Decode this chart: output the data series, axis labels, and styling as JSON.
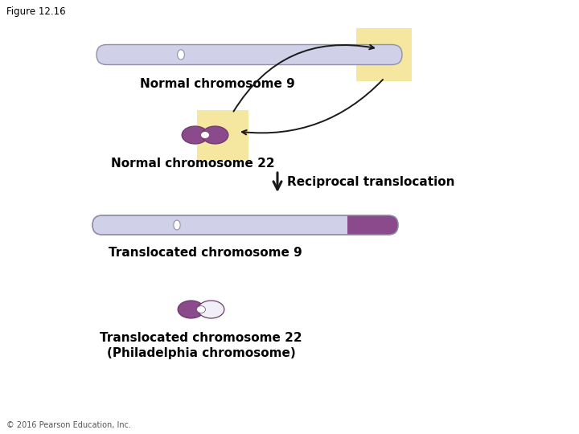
{
  "figure_label": "Figure 12.16",
  "copyright": "© 2016 Pearson Education, Inc.",
  "bg": "#ffffff",
  "chr_light": "#d0d0e8",
  "chr_light_inner": "#eeeef8",
  "chr_dark": "#8b4a8b",
  "chr_dark_inner": "#a05aa0",
  "highlight": "#f5e6a0",
  "arrow_color": "#1a1a1a",
  "text_color": "#000000",
  "label_chr9_normal": "Normal chromosome 9",
  "label_chr22_normal": "Normal chromosome 22",
  "label_reciprocal": "Reciprocal translocation",
  "label_chr9_trans": "Translocated chromosome 9",
  "label_chr22_trans": "Translocated chromosome 22\n(Philadelphia chromosome)",
  "copyright_text": "© 2016 Pearson Education, Inc."
}
